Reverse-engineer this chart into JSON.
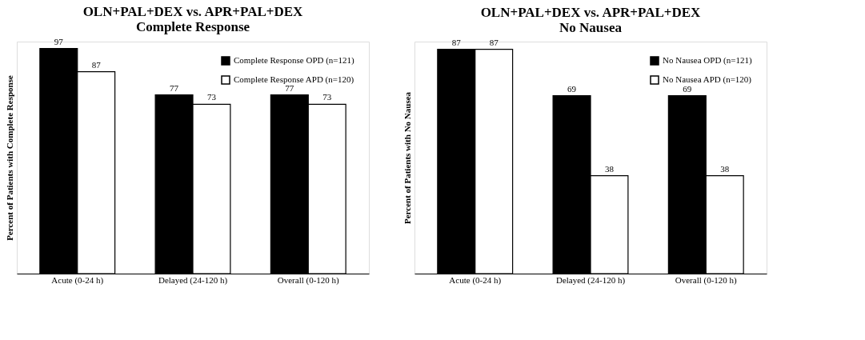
{
  "chart_data": [
    {
      "type": "bar",
      "title": [
        "OLN+PAL+DEX vs. APR+PAL+DEX",
        "Complete Response"
      ],
      "ylabel": "Percent of Patients with Complete Response",
      "categories": [
        "Acute (0-24 h)",
        "Delayed (24-120 h)",
        "Overall (0-120 h)"
      ],
      "series": [
        {
          "name": "Complete Response OPD (n=121)",
          "color": "#000000",
          "values": [
            97,
            77,
            77
          ]
        },
        {
          "name": "Complete Response APD (n=120)",
          "color": "#ffffff",
          "values": [
            87,
            73,
            73
          ]
        }
      ],
      "data_labels": true,
      "legend": "top right",
      "grid": false,
      "tick_labels": "x"
    },
    {
      "type": "bar",
      "title": [
        "OLN+PAL+DEX vs. APR+PAL+DEX",
        "No Nausea"
      ],
      "ylabel": "Percent of Patients with No Nausea",
      "categories": [
        "Acute (0-24 h)",
        "Delayed (24-120 h)",
        "Overall (0-120 h)"
      ],
      "series": [
        {
          "name": "No Nausea OPD (n=121)",
          "color": "#000000",
          "values": [
            87,
            69,
            69
          ]
        },
        {
          "name": "No Nausea APD (n=120)",
          "color": "#ffffff",
          "values": [
            87,
            38,
            38
          ]
        }
      ],
      "data_labels": true,
      "legend": "top right",
      "grid": false,
      "tick_labels": "x"
    }
  ]
}
